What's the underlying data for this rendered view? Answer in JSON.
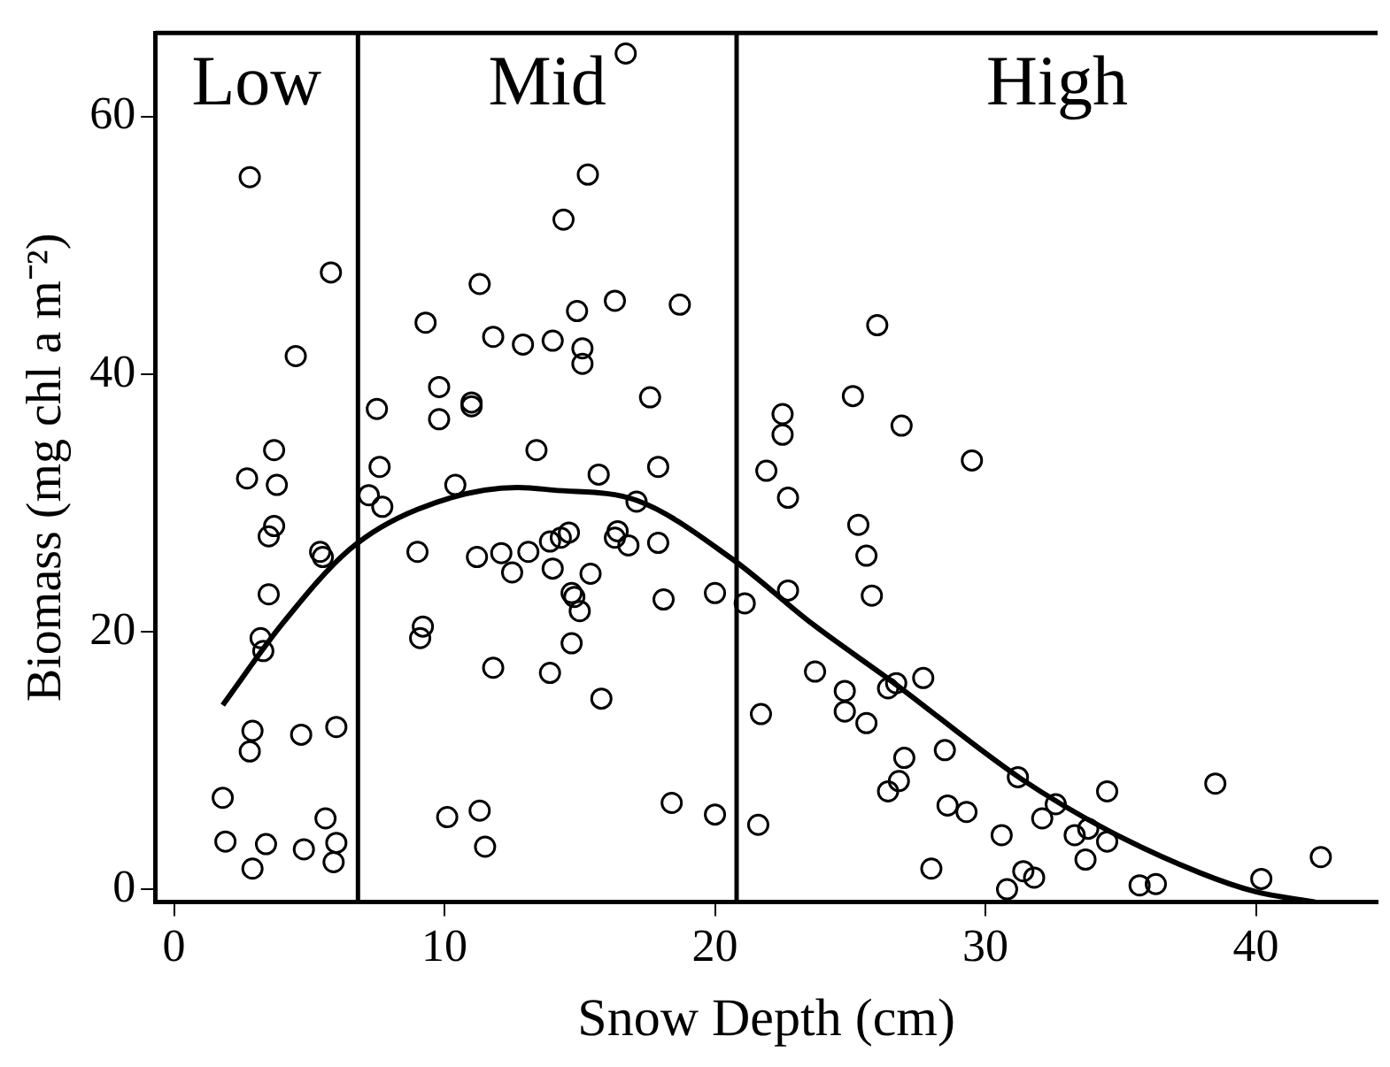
{
  "chart_data": {
    "type": "scatter",
    "xlabel": "Snow Depth (cm)",
    "ylabel": "Biomass (mg chl a m⁻²)",
    "xlim": [
      -0.7,
      44.5
    ],
    "ylim": [
      -1,
      66.5
    ],
    "xticks": [
      0,
      10,
      20,
      30,
      40
    ],
    "yticks": [
      0,
      20,
      40,
      60
    ],
    "grid": false,
    "legend": false,
    "ref_lines": [
      {
        "axis": "x",
        "value": 6.8
      },
      {
        "axis": "x",
        "value": 20.8
      }
    ],
    "annotations": [
      "Low",
      "Mid",
      "High"
    ],
    "series": [
      {
        "type": "scatter",
        "color": "#000000",
        "marker": "circle",
        "x": [
          2.8,
          5.8,
          4.5,
          3.7,
          11.3,
          14.4,
          9.3,
          11.8,
          12.9,
          14.0,
          14.9,
          15.1,
          15.1,
          7.5,
          9.8,
          9.8,
          11.0,
          11.0,
          13.4,
          7.6,
          15.3,
          16.7,
          16.3,
          18.7,
          17.6,
          17.9,
          15.7,
          26.0,
          25.1,
          22.5,
          22.5,
          26.9,
          29.5,
          21.9,
          2.7,
          3.8,
          3.7,
          3.5,
          5.4,
          5.5,
          3.5,
          3.2,
          3.3,
          2.9,
          2.8,
          4.7,
          6.0,
          1.8,
          1.9,
          3.4,
          4.8,
          5.6,
          6.0,
          5.9,
          2.9,
          7.2,
          7.7,
          10.4,
          9.0,
          11.2,
          12.1,
          12.5,
          13.1,
          13.9,
          14.3,
          14.6,
          14.0,
          15.4,
          14.7,
          14.8,
          15.0,
          14.7,
          9.2,
          9.1,
          11.8,
          13.9,
          10.1,
          11.3,
          11.5,
          17.1,
          16.4,
          16.3,
          16.8,
          17.9,
          15.8,
          18.1,
          20.0,
          18.4,
          20.0,
          21.1,
          21.7,
          21.6,
          22.7,
          22.7,
          25.3,
          25.6,
          25.8,
          23.7,
          24.8,
          24.8,
          25.6,
          26.4,
          26.7,
          27.7,
          27.0,
          26.8,
          26.4,
          28.5,
          28.6,
          29.3,
          28.0,
          30.6,
          30.8,
          31.4,
          31.8,
          31.2,
          32.6,
          32.1,
          33.3,
          33.8,
          33.7,
          34.5,
          34.5,
          35.7,
          36.3,
          38.5,
          40.2,
          42.4
        ],
        "values": [
          55.3,
          47.9,
          41.4,
          34.1,
          47.0,
          52.0,
          44.0,
          42.9,
          42.3,
          42.6,
          44.9,
          42.0,
          40.8,
          37.3,
          39.0,
          36.5,
          37.8,
          37.5,
          34.1,
          32.8,
          55.5,
          64.9,
          45.7,
          45.4,
          38.2,
          32.8,
          32.2,
          43.8,
          38.3,
          36.9,
          35.3,
          36.0,
          33.3,
          32.5,
          31.9,
          31.4,
          28.2,
          27.4,
          26.2,
          25.8,
          22.9,
          19.5,
          18.5,
          12.3,
          10.7,
          12.0,
          12.6,
          7.1,
          3.7,
          3.5,
          3.1,
          5.5,
          3.6,
          2.1,
          1.6,
          30.6,
          29.7,
          31.4,
          26.2,
          25.8,
          26.1,
          24.6,
          26.2,
          27.0,
          27.3,
          27.7,
          24.9,
          24.5,
          23.0,
          22.7,
          21.6,
          19.1,
          20.4,
          19.5,
          17.2,
          16.8,
          5.6,
          6.1,
          3.3,
          30.1,
          27.8,
          27.3,
          26.7,
          26.9,
          14.8,
          22.5,
          23.0,
          6.7,
          5.8,
          22.2,
          13.6,
          5.0,
          23.2,
          30.4,
          28.3,
          25.9,
          22.8,
          16.9,
          15.4,
          13.8,
          12.9,
          15.6,
          16.0,
          16.4,
          10.2,
          8.4,
          7.6,
          10.8,
          6.5,
          6.0,
          1.6,
          4.2,
          0,
          1.4,
          0.9,
          8.7,
          6.6,
          5.5,
          4.2,
          4.7,
          2.3,
          3.7,
          7.6,
          0.3,
          0.4,
          8.2,
          0.8,
          2.5
        ]
      },
      {
        "type": "line",
        "color": "#000000",
        "marker": "none",
        "line_style": "solid",
        "x": [
          1.8,
          4,
          6.5,
          9,
          12.7,
          14.0,
          17.1,
          20.6,
          23.6,
          26.5,
          31.3,
          34.5,
          37.9,
          40,
          42.2
        ],
        "values": [
          14.3,
          20.6,
          26.4,
          29.5,
          31.2,
          31.0,
          30.2,
          25.7,
          20.6,
          16.2,
          8.6,
          4.6,
          1.3,
          -0.2,
          -1
        ]
      }
    ]
  }
}
